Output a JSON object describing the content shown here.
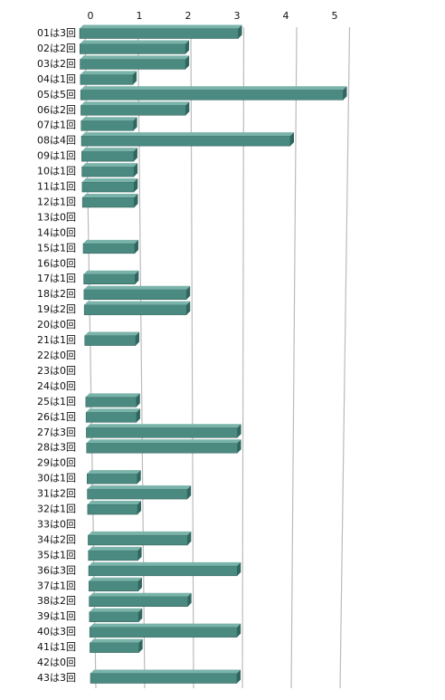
{
  "chart_data": {
    "type": "bar3d",
    "categories": [
      "01は3回",
      "02は2回",
      "03は2回",
      "04は1回",
      "05は5回",
      "06は2回",
      "07は1回",
      "08は4回",
      "09は1回",
      "10は1回",
      "11は1回",
      "12は1回",
      "13は0回",
      "14は0回",
      "15は1回",
      "16は0回",
      "17は1回",
      "18は2回",
      "19は2回",
      "20は0回",
      "21は1回",
      "22は0回",
      "23は0回",
      "24は0回",
      "25は1回",
      "26は1回",
      "27は3回",
      "28は3回",
      "29は0回",
      "30は1回",
      "31は2回",
      "32は1回",
      "33は0回",
      "34は2回",
      "35は1回",
      "36は3回",
      "37は1回",
      "38は2回",
      "39は1回",
      "40は3回",
      "41は1回",
      "42は0回",
      "43は3回"
    ],
    "values": [
      3,
      2,
      2,
      1,
      5,
      2,
      1,
      4,
      1,
      1,
      1,
      1,
      0,
      0,
      1,
      0,
      1,
      2,
      2,
      0,
      1,
      0,
      0,
      0,
      1,
      1,
      3,
      3,
      0,
      1,
      2,
      1,
      0,
      2,
      1,
      3,
      1,
      2,
      1,
      3,
      1,
      0,
      3
    ],
    "color": "#4a8a80",
    "xlim": [
      0,
      5
    ],
    "xticks": [
      0,
      1,
      2,
      3,
      4,
      5
    ],
    "grid": true
  }
}
